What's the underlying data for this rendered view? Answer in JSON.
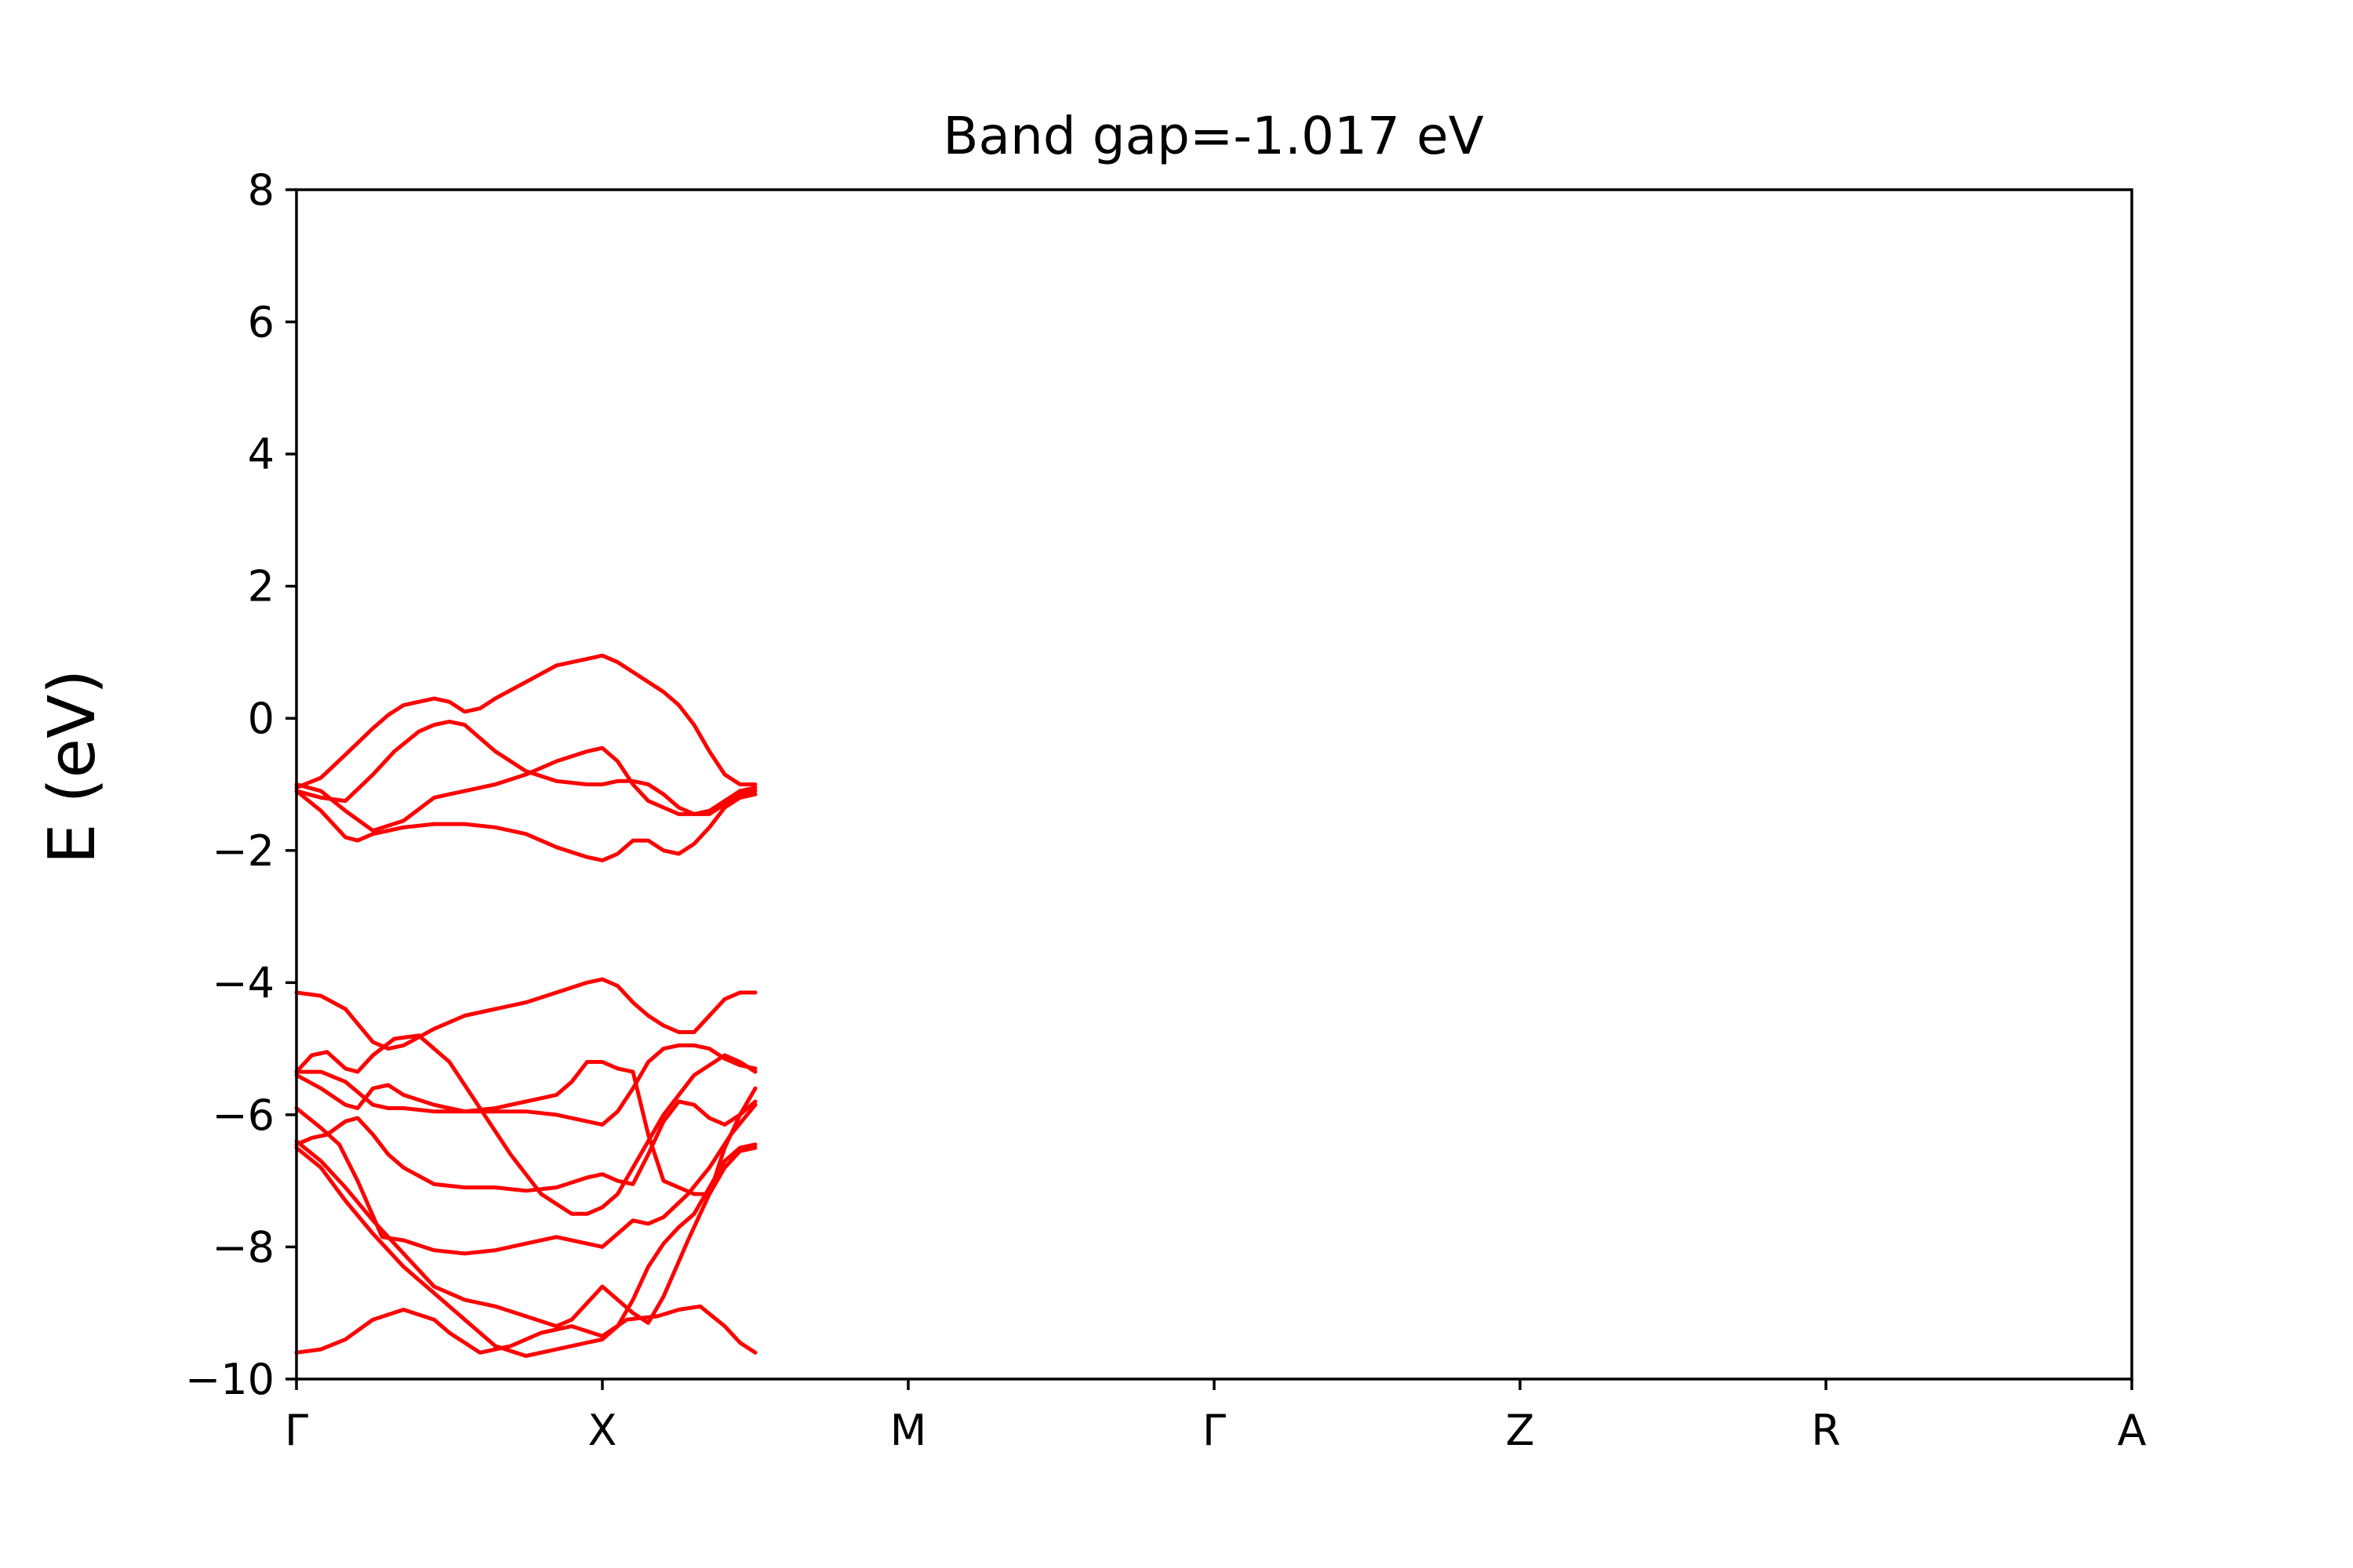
{
  "chart_data": {
    "type": "line",
    "title": "Band gap=-1.017 eV",
    "xlabel": "",
    "ylabel": "E (eV)",
    "ylim": [
      -10,
      8
    ],
    "xlim": [
      0,
      6
    ],
    "grid": false,
    "yticks": [
      {
        "value": -10,
        "label": "−10"
      },
      {
        "value": -8,
        "label": "−8"
      },
      {
        "value": -6,
        "label": "−6"
      },
      {
        "value": -4,
        "label": "−4"
      },
      {
        "value": -2,
        "label": "−2"
      },
      {
        "value": 0,
        "label": "0"
      },
      {
        "value": 2,
        "label": "2"
      },
      {
        "value": 4,
        "label": "4"
      },
      {
        "value": 6,
        "label": "6"
      },
      {
        "value": 8,
        "label": "8"
      }
    ],
    "xticks": [
      {
        "value": 0,
        "label": "Γ"
      },
      {
        "value": 1,
        "label": "X"
      },
      {
        "value": 2,
        "label": "M"
      },
      {
        "value": 3,
        "label": "Γ"
      },
      {
        "value": 4,
        "label": "Z"
      },
      {
        "value": 5,
        "label": "R"
      },
      {
        "value": 6,
        "label": "A"
      }
    ],
    "line_color": "#ff0000",
    "series": [
      {
        "x": [
          0,
          0.08,
          0.16,
          0.25,
          0.35,
          0.45,
          0.5,
          0.6,
          0.7,
          0.8,
          0.9,
          1.0,
          1.08,
          1.18,
          1.25,
          1.32,
          1.4,
          1.45,
          1.5
        ],
        "values": [
          -9.6,
          -9.55,
          -9.4,
          -9.1,
          -8.95,
          -9.1,
          -9.3,
          -9.6,
          -9.5,
          -9.3,
          -9.2,
          -9.35,
          -9.1,
          -9.05,
          -8.95,
          -8.9,
          -9.2,
          -9.45,
          -9.6
        ]
      },
      {
        "x": [
          0,
          0.08,
          0.16,
          0.25,
          0.35,
          0.45,
          0.55,
          0.65,
          0.75,
          0.85,
          0.95,
          1.0,
          1.05,
          1.1,
          1.15,
          1.2,
          1.25,
          1.3,
          1.35,
          1.4,
          1.45,
          1.5
        ],
        "values": [
          -6.5,
          -6.8,
          -7.3,
          -7.8,
          -8.3,
          -8.7,
          -9.1,
          -9.5,
          -9.65,
          -9.55,
          -9.45,
          -9.4,
          -9.2,
          -8.8,
          -8.3,
          -7.95,
          -7.7,
          -7.5,
          -7.1,
          -6.7,
          -6.5,
          -6.45
        ]
      },
      {
        "x": [
          0,
          0.08,
          0.16,
          0.25,
          0.35,
          0.45,
          0.55,
          0.65,
          0.75,
          0.85,
          0.9,
          0.95,
          1.0,
          1.05,
          1.1,
          1.15,
          1.2,
          1.28,
          1.35,
          1.4,
          1.45,
          1.5
        ],
        "values": [
          -6.4,
          -6.7,
          -7.1,
          -7.6,
          -8.1,
          -8.6,
          -8.8,
          -8.9,
          -9.05,
          -9.2,
          -9.1,
          -8.85,
          -8.6,
          -8.8,
          -9.0,
          -9.15,
          -8.75,
          -7.9,
          -7.2,
          -6.8,
          -6.55,
          -6.5
        ]
      },
      {
        "x": [
          0,
          0.08,
          0.14,
          0.2,
          0.28,
          0.35,
          0.45,
          0.55,
          0.65,
          0.75,
          0.85,
          0.95,
          1.0,
          1.05,
          1.1,
          1.15,
          1.2,
          1.28,
          1.35,
          1.42,
          1.5
        ],
        "values": [
          -5.9,
          -6.2,
          -6.45,
          -7.0,
          -7.85,
          -7.9,
          -8.05,
          -8.1,
          -8.05,
          -7.95,
          -7.85,
          -7.95,
          -8.0,
          -7.8,
          -7.6,
          -7.65,
          -7.55,
          -7.2,
          -6.8,
          -6.3,
          -5.85
        ]
      },
      {
        "x": [
          0,
          0.05,
          0.1,
          0.16,
          0.2,
          0.25,
          0.3,
          0.35,
          0.45,
          0.55,
          0.65,
          0.75,
          0.85,
          0.95,
          1.0,
          1.05,
          1.1,
          1.15,
          1.2,
          1.25,
          1.3,
          1.35,
          1.4,
          1.45,
          1.5
        ],
        "values": [
          -6.45,
          -6.35,
          -6.3,
          -6.1,
          -6.05,
          -6.3,
          -6.6,
          -6.8,
          -7.05,
          -7.1,
          -7.1,
          -7.15,
          -7.1,
          -6.95,
          -6.9,
          -7.0,
          -7.05,
          -6.6,
          -6.1,
          -5.8,
          -5.85,
          -6.05,
          -6.15,
          -6.0,
          -5.8
        ]
      },
      {
        "x": [
          0,
          0.08,
          0.16,
          0.2,
          0.25,
          0.3,
          0.35,
          0.45,
          0.5,
          0.55,
          0.65,
          0.75,
          0.85,
          0.9,
          0.95,
          1.0,
          1.05,
          1.1,
          1.15,
          1.2,
          1.3,
          1.35,
          1.4,
          1.45,
          1.5
        ],
        "values": [
          -5.4,
          -5.6,
          -5.85,
          -5.9,
          -5.6,
          -5.55,
          -5.7,
          -5.85,
          -5.9,
          -5.95,
          -5.9,
          -5.8,
          -5.7,
          -5.5,
          -5.2,
          -5.2,
          -5.3,
          -5.35,
          -6.3,
          -7.0,
          -7.2,
          -7.2,
          -6.5,
          -6.0,
          -5.6
        ]
      },
      {
        "x": [
          0,
          0.05,
          0.1,
          0.16,
          0.2,
          0.25,
          0.32,
          0.4,
          0.5,
          0.6,
          0.7,
          0.8,
          0.9,
          0.95,
          1.0,
          1.05,
          1.1,
          1.2,
          1.3,
          1.35,
          1.4,
          1.45,
          1.5
        ],
        "values": [
          -5.35,
          -5.1,
          -5.05,
          -5.3,
          -5.35,
          -5.1,
          -4.85,
          -4.8,
          -5.2,
          -5.9,
          -6.6,
          -7.2,
          -7.5,
          -7.5,
          -7.4,
          -7.2,
          -6.8,
          -6.0,
          -5.4,
          -5.25,
          -5.1,
          -5.2,
          -5.35
        ]
      },
      {
        "x": [
          0,
          0.08,
          0.16,
          0.25,
          0.3,
          0.35,
          0.45,
          0.55,
          0.65,
          0.75,
          0.85,
          0.95,
          1.0,
          1.05,
          1.1,
          1.15,
          1.2,
          1.25,
          1.3,
          1.35,
          1.4,
          1.45,
          1.5
        ],
        "values": [
          -5.35,
          -5.35,
          -5.5,
          -5.85,
          -5.9,
          -5.9,
          -5.95,
          -5.95,
          -5.95,
          -5.95,
          -6.0,
          -6.1,
          -6.15,
          -5.95,
          -5.6,
          -5.2,
          -5.0,
          -4.95,
          -4.95,
          -5.0,
          -5.15,
          -5.25,
          -5.3
        ]
      },
      {
        "x": [
          0,
          0.08,
          0.16,
          0.25,
          0.3,
          0.35,
          0.45,
          0.55,
          0.65,
          0.75,
          0.85,
          0.95,
          1.0,
          1.05,
          1.1,
          1.15,
          1.2,
          1.25,
          1.3,
          1.35,
          1.4,
          1.45,
          1.5
        ],
        "values": [
          -4.15,
          -4.2,
          -4.4,
          -4.9,
          -5.0,
          -4.95,
          -4.7,
          -4.5,
          -4.4,
          -4.3,
          -4.15,
          -4.0,
          -3.95,
          -4.05,
          -4.3,
          -4.5,
          -4.65,
          -4.75,
          -4.75,
          -4.5,
          -4.25,
          -4.15,
          -4.15
        ]
      },
      {
        "x": [
          0,
          0.08,
          0.16,
          0.2,
          0.25,
          0.3,
          0.35,
          0.45,
          0.55,
          0.65,
          0.75,
          0.85,
          0.95,
          1.0,
          1.05,
          1.1,
          1.15,
          1.2,
          1.25,
          1.3,
          1.35,
          1.4,
          1.45,
          1.5
        ],
        "values": [
          -1.1,
          -1.4,
          -1.8,
          -1.85,
          -1.75,
          -1.7,
          -1.65,
          -1.6,
          -1.6,
          -1.65,
          -1.75,
          -1.95,
          -2.1,
          -2.15,
          -2.05,
          -1.85,
          -1.85,
          -2.0,
          -2.05,
          -1.9,
          -1.65,
          -1.35,
          -1.2,
          -1.15
        ]
      },
      {
        "x": [
          0,
          0.08,
          0.16,
          0.25,
          0.35,
          0.45,
          0.5,
          0.55,
          0.65,
          0.75,
          0.85,
          0.95,
          1.0,
          1.05,
          1.1,
          1.15,
          1.2,
          1.25,
          1.3,
          1.35,
          1.4,
          1.45,
          1.5
        ],
        "values": [
          -1.0,
          -1.1,
          -1.4,
          -1.7,
          -1.55,
          -1.2,
          -1.15,
          -1.1,
          -1.0,
          -0.85,
          -0.65,
          -0.5,
          -0.45,
          -0.65,
          -1.0,
          -1.25,
          -1.35,
          -1.45,
          -1.45,
          -1.4,
          -1.25,
          -1.1,
          -1.05
        ]
      },
      {
        "x": [
          0,
          0.08,
          0.16,
          0.25,
          0.32,
          0.4,
          0.45,
          0.5,
          0.55,
          0.65,
          0.75,
          0.85,
          0.95,
          1.0,
          1.05,
          1.1,
          1.15,
          1.2,
          1.25,
          1.3,
          1.35,
          1.4,
          1.45,
          1.5
        ],
        "values": [
          -1.1,
          -1.2,
          -1.25,
          -0.85,
          -0.5,
          -0.2,
          -0.1,
          -0.05,
          -0.1,
          -0.5,
          -0.8,
          -0.95,
          -1.0,
          -1.0,
          -0.95,
          -0.95,
          -1.0,
          -1.15,
          -1.35,
          -1.45,
          -1.45,
          -1.3,
          -1.15,
          -1.1
        ]
      },
      {
        "x": [
          0,
          0.08,
          0.16,
          0.25,
          0.3,
          0.35,
          0.45,
          0.5,
          0.55,
          0.6,
          0.65,
          0.75,
          0.85,
          0.95,
          1.0,
          1.05,
          1.1,
          1.15,
          1.2,
          1.25,
          1.3,
          1.35,
          1.4,
          1.45,
          1.5
        ],
        "values": [
          -1.05,
          -0.9,
          -0.55,
          -0.15,
          0.05,
          0.2,
          0.3,
          0.25,
          0.1,
          0.15,
          0.3,
          0.55,
          0.8,
          0.9,
          0.95,
          0.85,
          0.7,
          0.55,
          0.4,
          0.2,
          -0.1,
          -0.5,
          -0.85,
          -1.0,
          -1.0
        ]
      }
    ]
  }
}
